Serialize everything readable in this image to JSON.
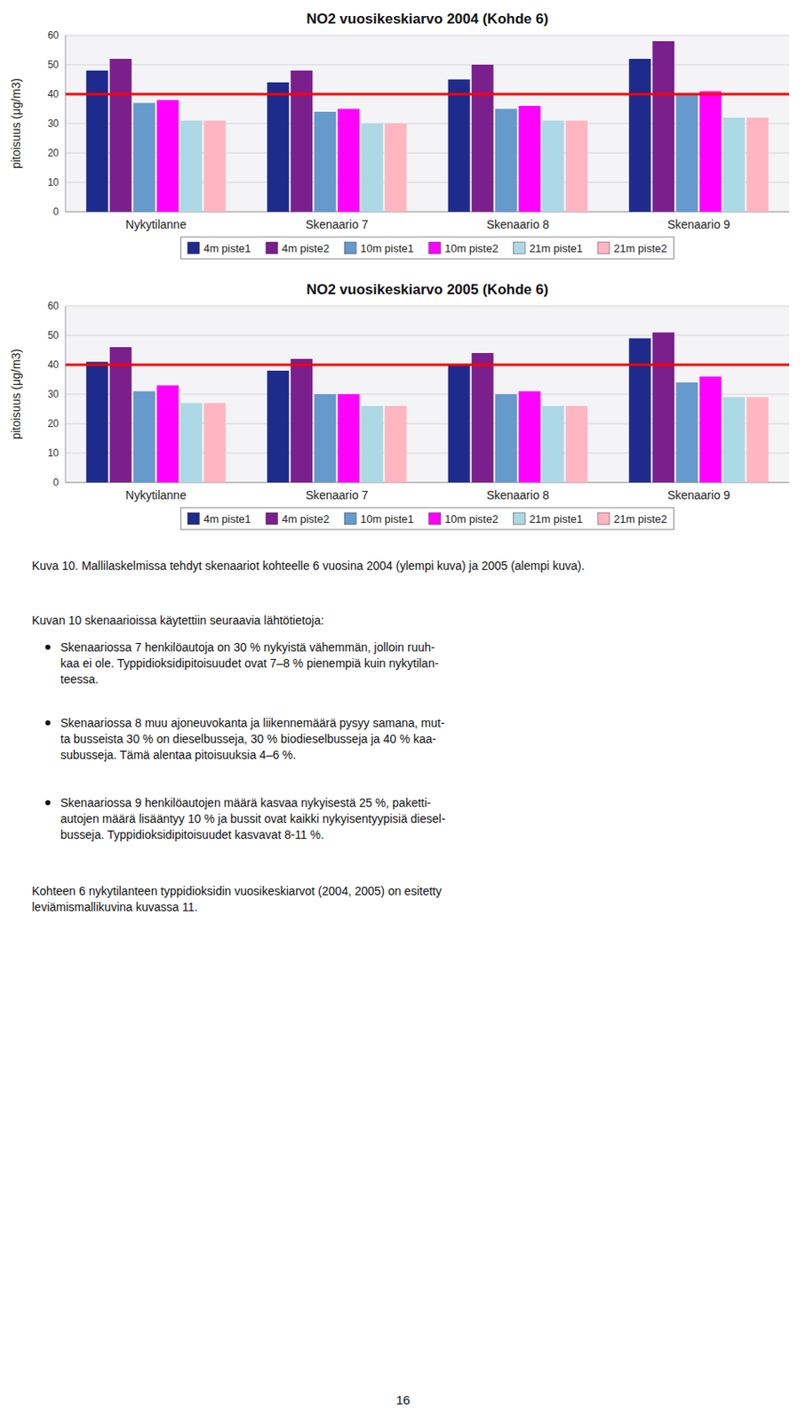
{
  "chart_data": [
    {
      "type": "bar",
      "title": "NO2 vuosikeskiarvo 2004 (Kohde 6)",
      "ylabel": "pitoisuus (μg/m3)",
      "categories": [
        "Nykytilanne",
        "Skenaario 7",
        "Skenaario 8",
        "Skenaario 9"
      ],
      "series": [
        {
          "name": "4m piste1",
          "color": "#1F2B8C",
          "values": [
            48,
            44,
            45,
            52
          ]
        },
        {
          "name": "4m piste2",
          "color": "#7B1F8C",
          "values": [
            52,
            48,
            50,
            58
          ]
        },
        {
          "name": "10m piste1",
          "color": "#6699CC",
          "values": [
            37,
            34,
            35,
            40
          ]
        },
        {
          "name": "10m piste2",
          "color": "#FF00FF",
          "values": [
            38,
            35,
            36,
            41
          ]
        },
        {
          "name": "21m piste1",
          "color": "#ADD8E6",
          "values": [
            31,
            30,
            31,
            32
          ]
        },
        {
          "name": "21m piste2",
          "color": "#FFB6C1",
          "values": [
            31,
            30,
            31,
            32
          ]
        }
      ],
      "reference_line": {
        "value": 40,
        "color": "#FF0000"
      },
      "ylim": [
        0,
        60
      ],
      "yticks": [
        0,
        10,
        20,
        30,
        40,
        50,
        60
      ],
      "grid": true,
      "legend": "bottom"
    },
    {
      "type": "bar",
      "title": "NO2 vuosikeskiarvo 2005 (Kohde 6)",
      "ylabel": "pitoisuus (μg/m3)",
      "categories": [
        "Nykytilanne",
        "Skenaario 7",
        "Skenaario 8",
        "Skenaario 9"
      ],
      "series": [
        {
          "name": "4m piste1",
          "color": "#1F2B8C",
          "values": [
            41,
            38,
            40,
            49
          ]
        },
        {
          "name": "4m piste2",
          "color": "#7B1F8C",
          "values": [
            46,
            42,
            44,
            51
          ]
        },
        {
          "name": "10m piste1",
          "color": "#6699CC",
          "values": [
            31,
            30,
            30,
            34
          ]
        },
        {
          "name": "10m piste2",
          "color": "#FF00FF",
          "values": [
            33,
            30,
            31,
            36
          ]
        },
        {
          "name": "21m piste1",
          "color": "#ADD8E6",
          "values": [
            27,
            26,
            26,
            29
          ]
        },
        {
          "name": "21m piste2",
          "color": "#FFB6C1",
          "values": [
            27,
            26,
            26,
            29
          ]
        }
      ],
      "reference_line": {
        "value": 40,
        "color": "#FF0000"
      },
      "ylim": [
        0,
        60
      ],
      "yticks": [
        0,
        10,
        20,
        30,
        40,
        50,
        60
      ],
      "grid": true,
      "legend": "bottom"
    }
  ],
  "caption": "Kuva 10. Mallilaskelmissa tehdyt skenaariot kohteelle 6 vuosina 2004 (ylempi kuva) ja 2005 (alempi kuva).",
  "intro_text": "Kuvan 10 skenaarioissa käytettiin seuraavia lähtötietoja:",
  "bullets": [
    "Skenaariossa 7 henkilöautoja on 30 % nykyistä vähemmän, jolloin ruuh-\nkaa ei ole. Typpidioksidipitoisuudet ovat 7–8 % pienempiä kuin nykytilan-\nteessa.",
    "Skenaariossa 8 muu ajoneuvokanta ja liikennemäärä pysyy samana, mut-\nta busseista 30 % on dieselbusseja, 30 % biodieselbusseja ja 40 % kaa-\nsubusseja. Tämä alentaa pitoisuuksia 4–6 %.",
    "Skenaariossa 9 henkilöautojen määrä kasvaa nykyisestä 25 %, paketti-\nautojen määrä lisääntyy 10 % ja bussit ovat kaikki nykyisentyypisiä diesel-\nbusseja. Typpidioksidipitoisuudet kasvavat 8-11 %."
  ],
  "bottom_text": "Kohteen 6 nykytilanteen typpidioksidin vuosikeskiarvot (2004, 2005) on esitetty\nleviämismallikuvina kuvassa 11.",
  "page_number": "16"
}
